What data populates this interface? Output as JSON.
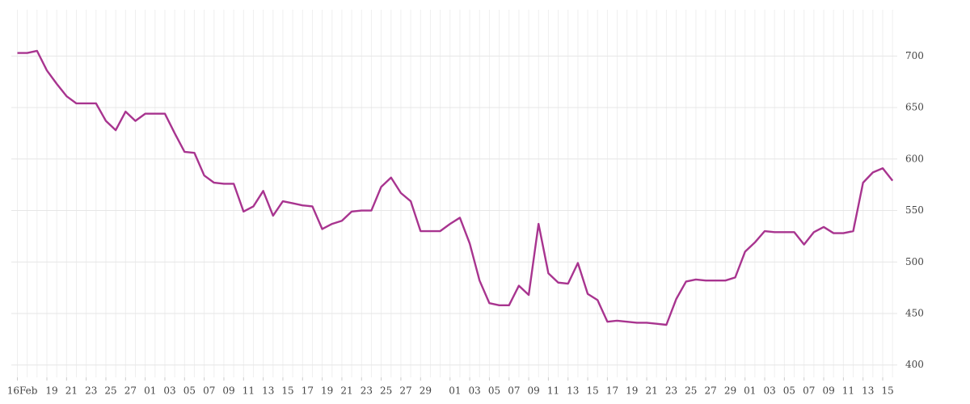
{
  "chart_data": {
    "type": "line",
    "x": [
      "02-16",
      "02-17",
      "02-18",
      "02-19",
      "02-20",
      "02-21",
      "02-22",
      "02-23",
      "02-24",
      "02-25",
      "02-26",
      "02-27",
      "02-28",
      "03-01",
      "03-02",
      "03-03",
      "03-04",
      "03-05",
      "03-06",
      "03-07",
      "03-08",
      "03-09",
      "03-10",
      "03-11",
      "03-12",
      "03-13",
      "03-14",
      "03-15",
      "03-16",
      "03-17",
      "03-18",
      "03-19",
      "03-20",
      "03-21",
      "03-22",
      "03-23",
      "03-24",
      "03-25",
      "03-26",
      "03-27",
      "03-28",
      "03-29",
      "03-30",
      "03-31",
      "04-01",
      "04-02",
      "04-03",
      "04-04",
      "04-05",
      "04-06",
      "04-07",
      "04-08",
      "04-09",
      "04-10",
      "04-11",
      "04-12",
      "04-13",
      "04-14",
      "04-15",
      "04-16",
      "04-17",
      "04-18",
      "04-19",
      "04-20",
      "04-21",
      "04-22",
      "04-23",
      "04-24",
      "04-25",
      "04-26",
      "04-27",
      "04-28",
      "04-29",
      "04-30",
      "05-01",
      "05-02",
      "05-03",
      "05-04",
      "05-05",
      "05-06",
      "05-07",
      "05-08",
      "05-09",
      "05-10",
      "05-11",
      "05-12",
      "05-13",
      "05-14",
      "05-15",
      "05-16"
    ],
    "series": [
      {
        "color": "#a8348f",
        "values": [
          703,
          703,
          705,
          686,
          673,
          661,
          654,
          654,
          654,
          637,
          628,
          646,
          637,
          644,
          644,
          644,
          625,
          607,
          606,
          584,
          577,
          576,
          576,
          549,
          554,
          569,
          545,
          559,
          557,
          555,
          554,
          532,
          537,
          540,
          549,
          550,
          550,
          573,
          582,
          567,
          559,
          530,
          530,
          530,
          537,
          543,
          518,
          482,
          460,
          458,
          458,
          477,
          468,
          537,
          489,
          480,
          479,
          499,
          469,
          463,
          442,
          443,
          442,
          441,
          441,
          440,
          439,
          464,
          481,
          483,
          482,
          482,
          482,
          485,
          510,
          519,
          530,
          529,
          529,
          529,
          517,
          529,
          534,
          528,
          528,
          530,
          577,
          587,
          591,
          579
        ]
      }
    ],
    "xticks": [
      {
        "value": "02-16",
        "label": "16Feb"
      },
      {
        "value": "02-19",
        "label": "19"
      },
      {
        "value": "02-21",
        "label": "21"
      },
      {
        "value": "02-23",
        "label": "23"
      },
      {
        "value": "02-25",
        "label": "25"
      },
      {
        "value": "02-27",
        "label": "27"
      },
      {
        "value": "03-01",
        "label": "01"
      },
      {
        "value": "03-03",
        "label": "03"
      },
      {
        "value": "03-05",
        "label": "05"
      },
      {
        "value": "03-07",
        "label": "07"
      },
      {
        "value": "03-09",
        "label": "09"
      },
      {
        "value": "03-11",
        "label": "11"
      },
      {
        "value": "03-13",
        "label": "13"
      },
      {
        "value": "03-15",
        "label": "15"
      },
      {
        "value": "03-17",
        "label": "17"
      },
      {
        "value": "03-19",
        "label": "19"
      },
      {
        "value": "03-21",
        "label": "21"
      },
      {
        "value": "03-23",
        "label": "23"
      },
      {
        "value": "03-25",
        "label": "25"
      },
      {
        "value": "03-27",
        "label": "27"
      },
      {
        "value": "03-29",
        "label": "29"
      },
      {
        "value": "04-01",
        "label": "01"
      },
      {
        "value": "04-03",
        "label": "03"
      },
      {
        "value": "04-05",
        "label": "05"
      },
      {
        "value": "04-07",
        "label": "07"
      },
      {
        "value": "04-09",
        "label": "09"
      },
      {
        "value": "04-11",
        "label": "11"
      },
      {
        "value": "04-13",
        "label": "13"
      },
      {
        "value": "04-15",
        "label": "15"
      },
      {
        "value": "04-17",
        "label": "17"
      },
      {
        "value": "04-19",
        "label": "19"
      },
      {
        "value": "04-21",
        "label": "21"
      },
      {
        "value": "04-23",
        "label": "23"
      },
      {
        "value": "04-25",
        "label": "25"
      },
      {
        "value": "04-27",
        "label": "27"
      },
      {
        "value": "04-29",
        "label": "29"
      },
      {
        "value": "05-01",
        "label": "01"
      },
      {
        "value": "05-03",
        "label": "03"
      },
      {
        "value": "05-05",
        "label": "05"
      },
      {
        "value": "05-07",
        "label": "07"
      },
      {
        "value": "05-09",
        "label": "09"
      },
      {
        "value": "05-11",
        "label": "11"
      },
      {
        "value": "05-13",
        "label": "13"
      },
      {
        "value": "05-15",
        "label": "15"
      }
    ],
    "ylim": [
      388,
      745
    ],
    "yticks": [
      400,
      450,
      500,
      550,
      600,
      650,
      700
    ],
    "grid": true,
    "y_axis_side": "right"
  }
}
